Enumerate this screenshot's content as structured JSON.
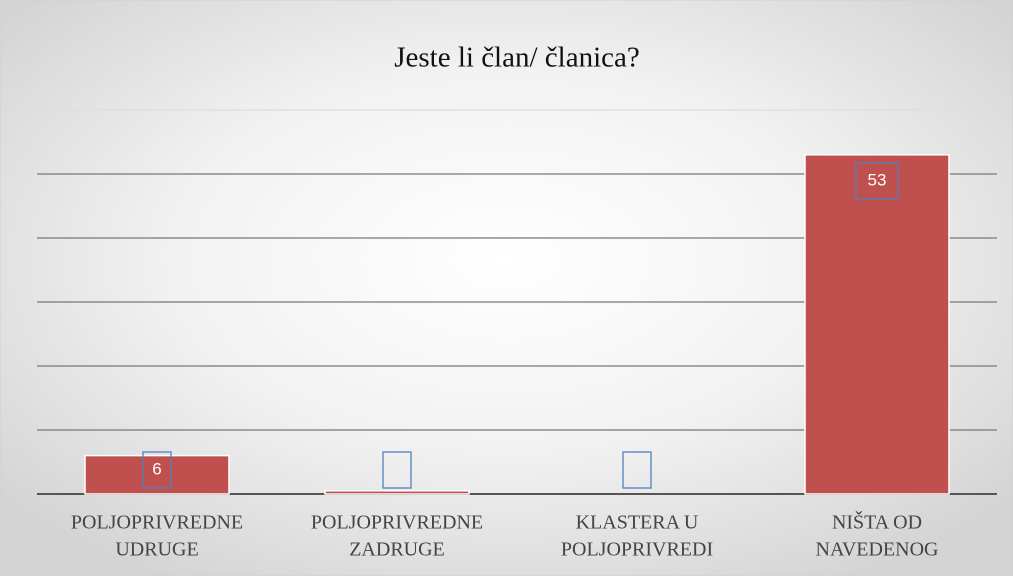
{
  "chart_data": {
    "type": "bar",
    "title": "Jeste li član/ članica?",
    "categories": [
      [
        "POLJOPRIVREDNE",
        "UDRUGE"
      ],
      [
        "POLJOPRIVREDNE",
        "ZADRUGE"
      ],
      [
        "KLASTERA U",
        "POLJOPRIVREDI"
      ],
      [
        "NIŠTA OD",
        "NAVEDENOG"
      ]
    ],
    "values": [
      6,
      0.5,
      0,
      53
    ],
    "color": "#c0504d",
    "ylim": [
      0,
      60
    ],
    "yticks": [
      0,
      10,
      20,
      30,
      40,
      50,
      60
    ],
    "grid": true
  }
}
